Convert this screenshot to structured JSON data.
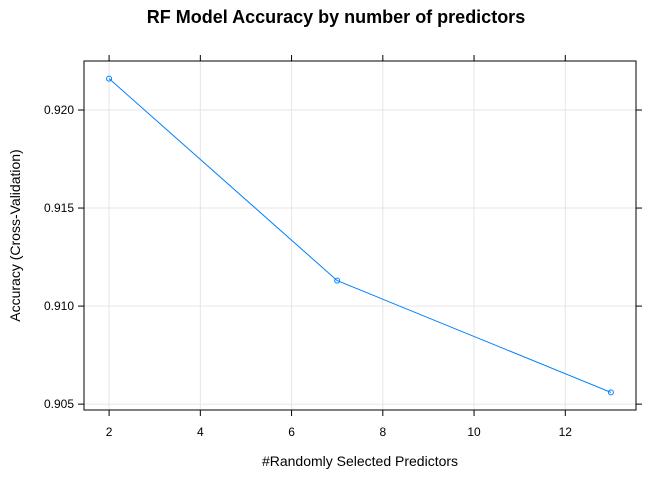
{
  "chart_data": {
    "type": "line",
    "title": "RF Model Accuracy by number of predictors",
    "xlabel": "#Randomly Selected Predictors",
    "ylabel": "Accuracy (Cross-Validation)",
    "x": [
      2,
      7,
      13
    ],
    "series": [
      {
        "values": [
          0.9216,
          0.9113,
          0.9056
        ]
      }
    ],
    "xlim": [
      1.45,
      13.55
    ],
    "ylim": [
      0.9047,
      0.9225
    ],
    "xticks": [
      2,
      4,
      6,
      8,
      10,
      12
    ],
    "xtick_labels": [
      "2",
      "4",
      "6",
      "8",
      "10",
      "12"
    ],
    "yticks": [
      0.905,
      0.91,
      0.915,
      0.92
    ],
    "ytick_labels": [
      "0.905",
      "0.910",
      "0.915",
      "0.920"
    ],
    "grid": true,
    "line_color": "#0080ff",
    "grid_color": "#e6e6e6"
  }
}
